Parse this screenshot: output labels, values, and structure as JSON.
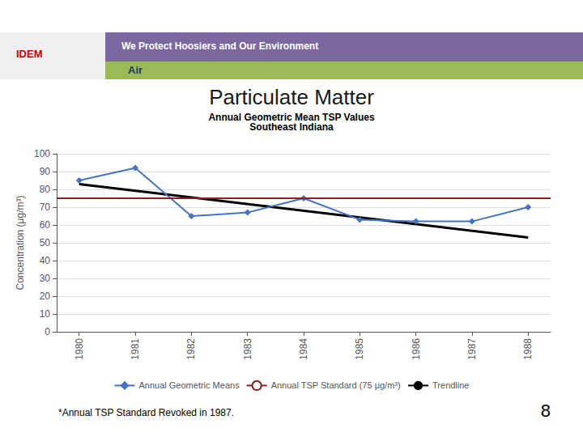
{
  "chart_data": {
    "type": "line",
    "title": "Particulate Matter",
    "subtitle": "Annual Geometric Mean TSP Values\nSoutheast Indiana",
    "ylabel": "Concentration (μg/m³)",
    "x": [
      1980,
      1981,
      1982,
      1983,
      1984,
      1985,
      1986,
      1987,
      1988
    ],
    "series": [
      {
        "name": "Annual Geometric Means",
        "type": "line",
        "color": "#4472C4",
        "marker": "diamond",
        "values": [
          85,
          92,
          65,
          67,
          75,
          63,
          62,
          62,
          70
        ]
      },
      {
        "name": "Annual TSP Standard (75 μg/m³)",
        "type": "hline",
        "color": "#8B2020",
        "value": 75
      },
      {
        "name": "Trendline",
        "type": "line",
        "color": "#000000",
        "x": [
          1980,
          1988
        ],
        "values": [
          83,
          53
        ]
      }
    ],
    "xlim": [
      1979.6,
      1988.4
    ],
    "xticks": [
      1980,
      1981,
      1982,
      1983,
      1984,
      1985,
      1986,
      1987,
      1988
    ],
    "ylim": [
      0,
      100
    ],
    "yticks": [
      0,
      10,
      20,
      30,
      40,
      50,
      60,
      70,
      80,
      90,
      100
    ],
    "grid": true,
    "legend": "bottom",
    "annotations": [
      "IDEM",
      "We Protect Hoosiers and Our Environment",
      "Air",
      "*Annual TSP Standard Revoked in 1987.",
      "8"
    ]
  }
}
